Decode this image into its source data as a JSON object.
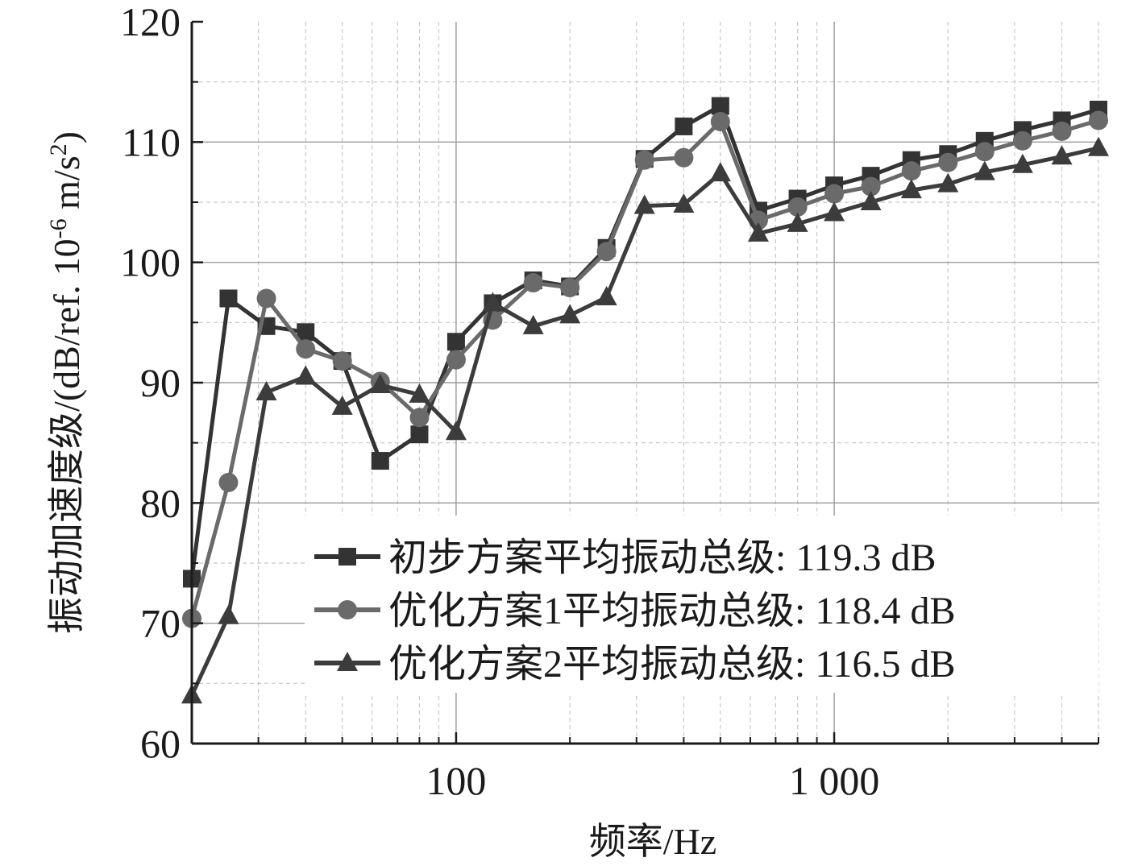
{
  "chart_data": {
    "type": "line",
    "xscale": "log",
    "xlim": [
      20,
      5000
    ],
    "ylim": [
      60,
      120
    ],
    "xlabel": "频率/Hz",
    "ylabel_prefix": "振动加速度级/(dB/ref. 10",
    "ylabel_exp": "-6",
    "ylabel_mid": " m/s",
    "ylabel_exp2": "2",
    "ylabel_suffix": ")",
    "x_tick_labels": [
      {
        "value": 100,
        "label": "100"
      },
      {
        "value": 1000,
        "label": "1 000"
      }
    ],
    "y_tick_labels": [
      "60",
      "70",
      "80",
      "90",
      "100",
      "110",
      "120"
    ],
    "y_ticks": [
      60,
      70,
      80,
      90,
      100,
      110,
      120
    ],
    "grid": true,
    "legend_position": "bottom-right",
    "x": [
      20,
      25,
      31.5,
      40,
      50,
      63,
      80,
      100,
      125,
      160,
      200,
      250,
      315,
      400,
      500,
      630,
      800,
      1000,
      1250,
      1600,
      2000,
      2500,
      3150,
      4000,
      5000
    ],
    "series": [
      {
        "name": "初步方案平均振动总级: 119.3 dB",
        "marker": "square",
        "color": "#333333",
        "values": [
          73.7,
          97.0,
          94.7,
          94.2,
          91.8,
          83.5,
          85.7,
          93.4,
          96.6,
          98.5,
          98.0,
          101.2,
          108.6,
          111.3,
          113.0,
          104.3,
          105.3,
          106.4,
          107.2,
          108.5,
          109.0,
          110.1,
          111.0,
          111.8,
          112.7
        ]
      },
      {
        "name": "优化方案1平均振动总级: 118.4 dB",
        "marker": "circle",
        "color": "#6a6a6a",
        "values": [
          70.4,
          81.7,
          97.0,
          92.8,
          91.8,
          90.1,
          87.1,
          91.9,
          95.2,
          98.3,
          97.9,
          100.9,
          108.5,
          108.7,
          111.7,
          103.5,
          104.6,
          105.7,
          106.3,
          107.6,
          108.3,
          109.2,
          110.1,
          110.9,
          111.8
        ]
      },
      {
        "name": "优化方案2平均振动总级: 116.5 dB",
        "marker": "triangle",
        "color": "#3c3c3c",
        "values": [
          64.0,
          70.6,
          89.2,
          90.5,
          88.0,
          89.8,
          89.0,
          85.9,
          96.6,
          94.7,
          95.6,
          97.1,
          104.7,
          104.8,
          107.4,
          102.4,
          103.2,
          104.1,
          105.0,
          106.0,
          106.5,
          107.5,
          108.1,
          108.8,
          109.5
        ]
      }
    ]
  }
}
